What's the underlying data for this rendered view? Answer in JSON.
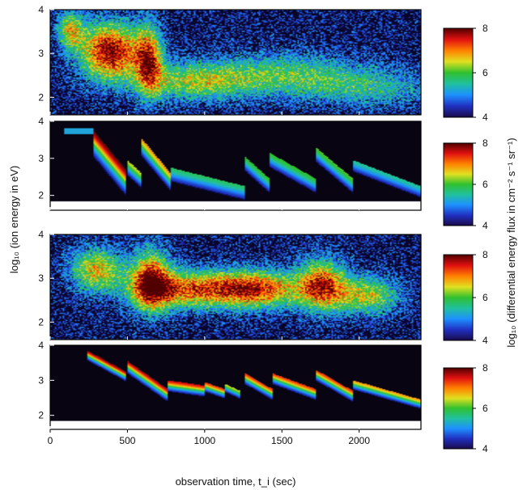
{
  "chart_data": {
    "type": "heatmap",
    "title": "",
    "xlabel": "observation time, t_i (sec)",
    "ylabel": "log₁₀ (ion energy in eV)",
    "colorbar_label": "log₁₀ (differential energy flux in cm⁻² s⁻¹ sr⁻¹)",
    "xlim": [
      0,
      2400
    ],
    "x_ticks": [
      0,
      500,
      1000,
      1500,
      2000
    ],
    "x_tick_labels": [
      "0",
      "500",
      "1000",
      "1500",
      "2000"
    ],
    "colorscale": [
      "#1a0a4a",
      "#2030c0",
      "#1e90ff",
      "#20c0a0",
      "#30c030",
      "#e0e020",
      "#ff8000",
      "#e01010",
      "#500000"
    ],
    "panels": [
      {
        "id": "p1",
        "ylim": [
          1.6,
          4.0
        ],
        "y_ticks": [
          2,
          3,
          4
        ],
        "y_tick_labels": [
          "2",
          "3",
          "4"
        ],
        "colorbar_range": [
          4,
          8
        ],
        "colorbar_ticks": [
          4,
          6,
          8
        ],
        "colorbar_tick_labels": [
          "4",
          "6",
          "8"
        ],
        "noisy": true,
        "cutoff_energy": null,
        "blobs": [
          {
            "t": 130,
            "e": 3.55,
            "st": 60,
            "se": 0.3,
            "a": 2.0
          },
          {
            "t": 390,
            "e": 3.05,
            "st": 140,
            "se": 0.45,
            "a": 3.4
          },
          {
            "t": 640,
            "e": 2.85,
            "st": 60,
            "se": 0.55,
            "a": 2.6
          },
          {
            "t": 900,
            "e": 2.35,
            "st": 250,
            "se": 0.3,
            "a": 1.6
          },
          {
            "t": 1500,
            "e": 2.5,
            "st": 380,
            "se": 0.35,
            "a": 1.5
          },
          {
            "t": 2100,
            "e": 2.2,
            "st": 300,
            "se": 0.3,
            "a": 1.0
          }
        ]
      },
      {
        "id": "p2",
        "ylim": [
          1.6,
          4.0
        ],
        "y_ticks": [
          2,
          3,
          4
        ],
        "y_tick_labels": [
          "2",
          "3",
          "4"
        ],
        "colorbar_range": [
          4,
          8
        ],
        "colorbar_ticks": [
          4,
          6,
          8
        ],
        "colorbar_tick_labels": [
          "4",
          "6",
          "8"
        ],
        "noisy": false,
        "cutoff_energy": 1.85,
        "onset_t": 90,
        "base_level": 0.45,
        "saw": [
          {
            "t0": 280,
            "t1": 490,
            "e0": 3.75,
            "e1": 2.7,
            "w": 0.55,
            "a": 3.5
          },
          {
            "t0": 500,
            "t1": 590,
            "e0": 2.95,
            "e1": 2.6,
            "w": 0.35,
            "a": 2.2
          },
          {
            "t0": 590,
            "t1": 780,
            "e0": 3.55,
            "e1": 2.6,
            "w": 0.4,
            "a": 2.6
          },
          {
            "t0": 780,
            "t1": 1260,
            "e0": 2.75,
            "e1": 2.25,
            "w": 0.35,
            "a": 1.6
          },
          {
            "t0": 1260,
            "t1": 1420,
            "e0": 3.05,
            "e1": 2.45,
            "w": 0.35,
            "a": 1.8
          },
          {
            "t0": 1420,
            "t1": 1720,
            "e0": 3.15,
            "e1": 2.45,
            "w": 0.35,
            "a": 1.8
          },
          {
            "t0": 1720,
            "t1": 1960,
            "e0": 3.3,
            "e1": 2.45,
            "w": 0.35,
            "a": 1.9
          },
          {
            "t0": 1960,
            "t1": 2400,
            "e0": 2.95,
            "e1": 2.25,
            "w": 0.3,
            "a": 1.4
          }
        ]
      },
      {
        "id": "p3",
        "ylim": [
          1.6,
          4.0
        ],
        "y_ticks": [
          2,
          3,
          4
        ],
        "y_tick_labels": [
          "2",
          "3",
          "4"
        ],
        "colorbar_range": [
          4,
          8
        ],
        "colorbar_ticks": [
          4,
          6,
          8
        ],
        "colorbar_tick_labels": [
          "4",
          "6",
          "8"
        ],
        "noisy": true,
        "cutoff_energy": null,
        "blobs": [
          {
            "t": 300,
            "e": 3.2,
            "st": 120,
            "se": 0.35,
            "a": 2.2
          },
          {
            "t": 650,
            "e": 2.95,
            "st": 90,
            "se": 0.5,
            "a": 2.8
          },
          {
            "t": 900,
            "e": 2.75,
            "st": 250,
            "se": 0.3,
            "a": 2.6
          },
          {
            "t": 1350,
            "e": 2.75,
            "st": 200,
            "se": 0.3,
            "a": 2.7
          },
          {
            "t": 1760,
            "e": 2.85,
            "st": 110,
            "se": 0.4,
            "a": 2.8
          },
          {
            "t": 2050,
            "e": 2.6,
            "st": 150,
            "se": 0.3,
            "a": 2.0
          }
        ]
      },
      {
        "id": "p4",
        "ylim": [
          1.6,
          4.0
        ],
        "y_ticks": [
          2,
          3,
          4
        ],
        "y_tick_labels": [
          "2",
          "3",
          "4"
        ],
        "colorbar_range": [
          4,
          8
        ],
        "colorbar_ticks": [
          4,
          6,
          8
        ],
        "colorbar_tick_labels": [
          "4",
          "6",
          "8"
        ],
        "noisy": false,
        "cutoff_energy": 1.85,
        "onset_t": 240,
        "base_level": 0.0,
        "saw": [
          {
            "t0": 240,
            "t1": 490,
            "e0": 3.85,
            "e1": 3.25,
            "w": 0.22,
            "a": 3.4
          },
          {
            "t0": 500,
            "t1": 760,
            "e0": 3.55,
            "e1": 2.75,
            "w": 0.28,
            "a": 3.3
          },
          {
            "t0": 760,
            "t1": 1000,
            "e0": 3.0,
            "e1": 2.85,
            "w": 0.25,
            "a": 3.2
          },
          {
            "t0": 1000,
            "t1": 1130,
            "e0": 2.95,
            "e1": 2.75,
            "w": 0.22,
            "a": 3.0
          },
          {
            "t0": 1130,
            "t1": 1230,
            "e0": 2.9,
            "e1": 2.7,
            "w": 0.2,
            "a": 2.2
          },
          {
            "t0": 1260,
            "t1": 1440,
            "e0": 3.2,
            "e1": 2.75,
            "w": 0.25,
            "a": 3.0
          },
          {
            "t0": 1440,
            "t1": 1720,
            "e0": 3.2,
            "e1": 2.75,
            "w": 0.25,
            "a": 3.0
          },
          {
            "t0": 1720,
            "t1": 1960,
            "e0": 3.3,
            "e1": 2.7,
            "w": 0.25,
            "a": 3.0
          },
          {
            "t0": 1960,
            "t1": 2400,
            "e0": 3.0,
            "e1": 2.45,
            "w": 0.22,
            "a": 2.6
          }
        ]
      }
    ]
  }
}
